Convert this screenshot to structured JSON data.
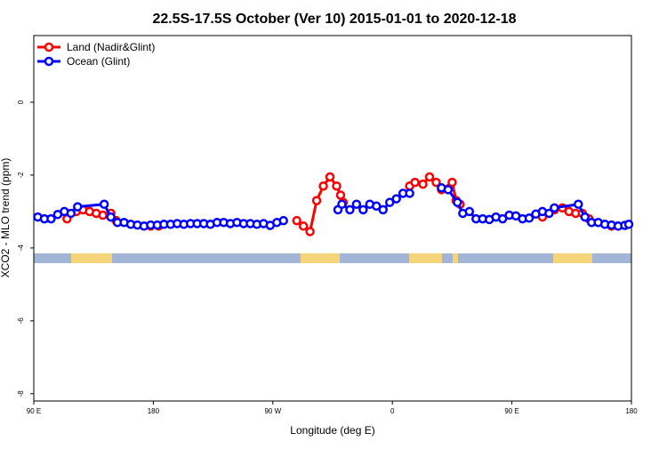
{
  "chart_data": {
    "type": "line",
    "title": "22.5S-17.5S October (Ver 10)   2015-01-01 to 2020-12-18",
    "x_label": "Longitude (deg E)",
    "y_label": "XCO2 - MLO trend (ppm)",
    "xlim": [
      90,
      540
    ],
    "ylim": [
      -8.2,
      1.83
    ],
    "xticks": [
      {
        "value": 90,
        "label": "90 E"
      },
      {
        "value": 180,
        "label": "180"
      },
      {
        "value": 270,
        "label": "90 W"
      },
      {
        "value": 360,
        "label": "0"
      },
      {
        "value": 450,
        "label": "90 E"
      },
      {
        "value": 540,
        "label": "180"
      }
    ],
    "yticks": [
      0,
      -2,
      -4,
      -6,
      -8
    ],
    "legend": "top-left",
    "series": [
      {
        "name": "Land (Nadir&Glint)",
        "color": "#ff0000",
        "x": [
          115,
          122,
          127,
          132,
          137,
          142,
          148,
          152,
          null,
          178,
          184,
          null,
          288,
          293,
          298,
          303,
          308,
          313,
          318,
          321,
          323,
          null,
          373,
          377,
          383,
          388,
          393,
          397,
          405,
          408,
          411,
          null,
          473,
          482,
          488,
          493,
          498,
          503,
          508,
          null,
          525,
          530
        ],
        "values": [
          -3.2,
          -3.0,
          -2.95,
          -3.0,
          -3.05,
          -3.1,
          -3.05,
          -3.25,
          null,
          -3.4,
          -3.4,
          null,
          -3.25,
          -3.4,
          -3.55,
          -2.7,
          -2.3,
          -2.05,
          -2.3,
          -2.55,
          -2.75,
          null,
          -2.3,
          -2.2,
          -2.25,
          -2.05,
          -2.2,
          -2.4,
          -2.2,
          -2.7,
          -2.8,
          null,
          -3.15,
          -2.95,
          -2.9,
          -3.0,
          -3.05,
          -3.05,
          -3.2,
          null,
          -3.4,
          -3.4
        ]
      },
      {
        "name": "Ocean (Glint)",
        "color": "#0000ff",
        "x": [
          93,
          98,
          103,
          108,
          113,
          118,
          123,
          143,
          148,
          153,
          158,
          163,
          168,
          173,
          178,
          183,
          188,
          193,
          198,
          203,
          208,
          213,
          218,
          223,
          228,
          233,
          238,
          243,
          248,
          253,
          258,
          263,
          268,
          273,
          278,
          null,
          319,
          322,
          328,
          333,
          338,
          343,
          348,
          353,
          358,
          363,
          368,
          373,
          null,
          397,
          402,
          409,
          413,
          418,
          423,
          428,
          433,
          438,
          443,
          448,
          453,
          458,
          463,
          468,
          473,
          478,
          482,
          500,
          505,
          510,
          515,
          520,
          525,
          530,
          535,
          538
        ],
        "values": [
          -3.15,
          -3.2,
          -3.2,
          -3.08,
          -3.0,
          -3.05,
          -2.87,
          -2.8,
          -3.15,
          -3.3,
          -3.3,
          -3.35,
          -3.37,
          -3.4,
          -3.37,
          -3.37,
          -3.35,
          -3.35,
          -3.33,
          -3.35,
          -3.33,
          -3.33,
          -3.33,
          -3.35,
          -3.3,
          -3.3,
          -3.33,
          -3.3,
          -3.33,
          -3.33,
          -3.35,
          -3.33,
          -3.38,
          -3.3,
          -3.25,
          null,
          -2.95,
          -2.8,
          -2.95,
          -2.8,
          -2.95,
          -2.8,
          -2.85,
          -2.95,
          -2.75,
          -2.65,
          -2.5,
          -2.5,
          null,
          -2.35,
          -2.4,
          -2.75,
          -3.05,
          -3.0,
          -3.2,
          -3.2,
          -3.22,
          -3.15,
          -3.2,
          -3.1,
          -3.12,
          -3.2,
          -3.18,
          -3.07,
          -3.0,
          -3.05,
          -2.9,
          -2.8,
          -3.15,
          -3.3,
          -3.3,
          -3.35,
          -3.37,
          -3.4,
          -3.38,
          -3.35
        ]
      }
    ]
  }
}
